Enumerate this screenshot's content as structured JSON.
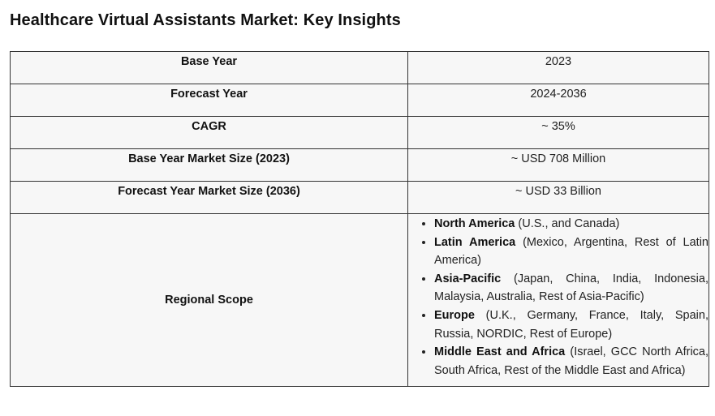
{
  "title": "Healthcare Virtual Assistants Market: Key Insights",
  "rows": [
    {
      "label": "Base Year",
      "value": "2023"
    },
    {
      "label": "Forecast Year",
      "value": "2024-2036"
    },
    {
      "label": "CAGR",
      "value": "~ 35%"
    },
    {
      "label": "Base Year Market Size (2023)",
      "value": "~ USD 708 Million"
    },
    {
      "label": "Forecast Year Market Size (2036)",
      "value": "~ USD 33 Billion"
    }
  ],
  "regional": {
    "label": "Regional Scope",
    "regions": [
      {
        "name": "North America",
        "detail": "(U.S., and Canada)"
      },
      {
        "name": "Latin America",
        "detail": "(Mexico, Argentina, Rest of Latin America)"
      },
      {
        "name": "Asia-Pacific",
        "detail": "(Japan, China, India, Indonesia, Malaysia, Australia, Rest of Asia-Pacific)"
      },
      {
        "name": "Europe",
        "detail": "(U.K., Germany, France, Italy, Spain, Russia, NORDIC, Rest of Europe)"
      },
      {
        "name": "Middle East and Africa",
        "detail": "(Israel, GCC North Africa, South Africa, Rest of the Middle East and Africa)"
      }
    ]
  }
}
